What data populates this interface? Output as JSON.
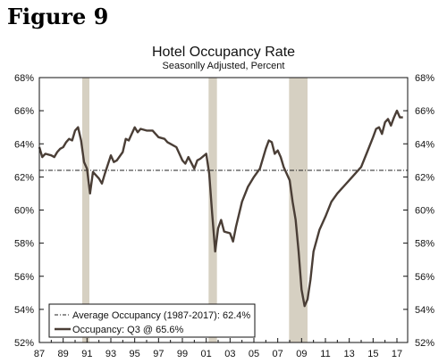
{
  "figure_label": "Figure 9",
  "chart_data": {
    "type": "line",
    "title": "Hotel Occupancy Rate",
    "subtitle": "Seasonlly Adjusted, Percent",
    "xlabel": "",
    "ylabel": "",
    "ylim": [
      52,
      68
    ],
    "xlim": [
      1987,
      2017.9
    ],
    "yticks": [
      "52%",
      "54%",
      "56%",
      "58%",
      "60%",
      "62%",
      "64%",
      "66%",
      "68%"
    ],
    "xticks": [
      "87",
      "89",
      "91",
      "93",
      "95",
      "97",
      "99",
      "01",
      "03",
      "05",
      "07",
      "09",
      "11",
      "13",
      "15",
      "17"
    ],
    "recessions": [
      [
        1990.6,
        1991.2
      ],
      [
        2001.2,
        2001.9
      ],
      [
        2007.95,
        2009.5
      ]
    ],
    "grid": false,
    "legend_position": "bottom-left",
    "series": [
      {
        "name": "Average Occupancy (1987-2017): 62.4%",
        "style": "dash-dot",
        "color": "#222222",
        "x": [
          1987,
          2017.9
        ],
        "y": [
          62.4,
          62.4
        ]
      },
      {
        "name": "Occupancy: Q3 @ 65.6%",
        "style": "solid",
        "color": "#4a3e36",
        "x": [
          1987.0,
          1987.25,
          1987.5,
          1988.0,
          1988.25,
          1988.5,
          1988.75,
          1989.0,
          1989.25,
          1989.5,
          1989.75,
          1990.0,
          1990.25,
          1990.5,
          1990.75,
          1991.0,
          1991.25,
          1991.5,
          1992.0,
          1992.25,
          1992.5,
          1993.0,
          1993.25,
          1993.5,
          1994.0,
          1994.25,
          1994.5,
          1995.0,
          1995.25,
          1995.5,
          1996.0,
          1996.5,
          1997.0,
          1997.5,
          1997.75,
          1998.0,
          1998.5,
          1999.0,
          1999.25,
          1999.5,
          2000.0,
          2000.25,
          2000.5,
          2001.0,
          2001.25,
          2001.5,
          2001.75,
          2002.0,
          2002.25,
          2002.5,
          2003.0,
          2003.25,
          2003.5,
          2004.0,
          2004.5,
          2005.0,
          2005.5,
          2006.0,
          2006.25,
          2006.5,
          2006.75,
          2007.0,
          2007.25,
          2007.5,
          2007.75,
          2008.0,
          2008.25,
          2008.5,
          2008.75,
          2009.0,
          2009.25,
          2009.5,
          2009.75,
          2010.0,
          2010.5,
          2011.0,
          2011.5,
          2012.0,
          2012.5,
          2013.0,
          2013.5,
          2014.0,
          2014.5,
          2015.0,
          2015.25,
          2015.5,
          2015.75,
          2016.0,
          2016.25,
          2016.5,
          2016.75,
          2017.0,
          2017.25,
          2017.5
        ],
        "y": [
          63.8,
          63.2,
          63.4,
          63.3,
          63.2,
          63.5,
          63.7,
          63.8,
          64.1,
          64.3,
          64.2,
          64.8,
          65.0,
          64.2,
          62.9,
          62.5,
          61.0,
          62.3,
          61.9,
          61.6,
          62.2,
          63.3,
          62.9,
          63.0,
          63.5,
          64.3,
          64.2,
          65.0,
          64.7,
          64.9,
          64.8,
          64.8,
          64.4,
          64.3,
          64.1,
          64.0,
          63.8,
          63.0,
          62.8,
          63.2,
          62.5,
          63.0,
          63.1,
          63.4,
          62.2,
          59.8,
          57.5,
          58.9,
          59.4,
          58.7,
          58.6,
          58.1,
          59.0,
          60.5,
          61.4,
          62.0,
          62.5,
          63.7,
          64.2,
          64.1,
          63.4,
          63.6,
          63.2,
          62.6,
          62.2,
          61.8,
          60.5,
          59.4,
          57.5,
          55.2,
          54.2,
          54.6,
          55.8,
          57.5,
          58.8,
          59.6,
          60.5,
          61.0,
          61.4,
          61.8,
          62.2,
          62.6,
          63.5,
          64.4,
          64.9,
          65.0,
          64.6,
          65.3,
          65.5,
          65.1,
          65.6,
          66.0,
          65.6,
          65.6
        ]
      }
    ]
  }
}
